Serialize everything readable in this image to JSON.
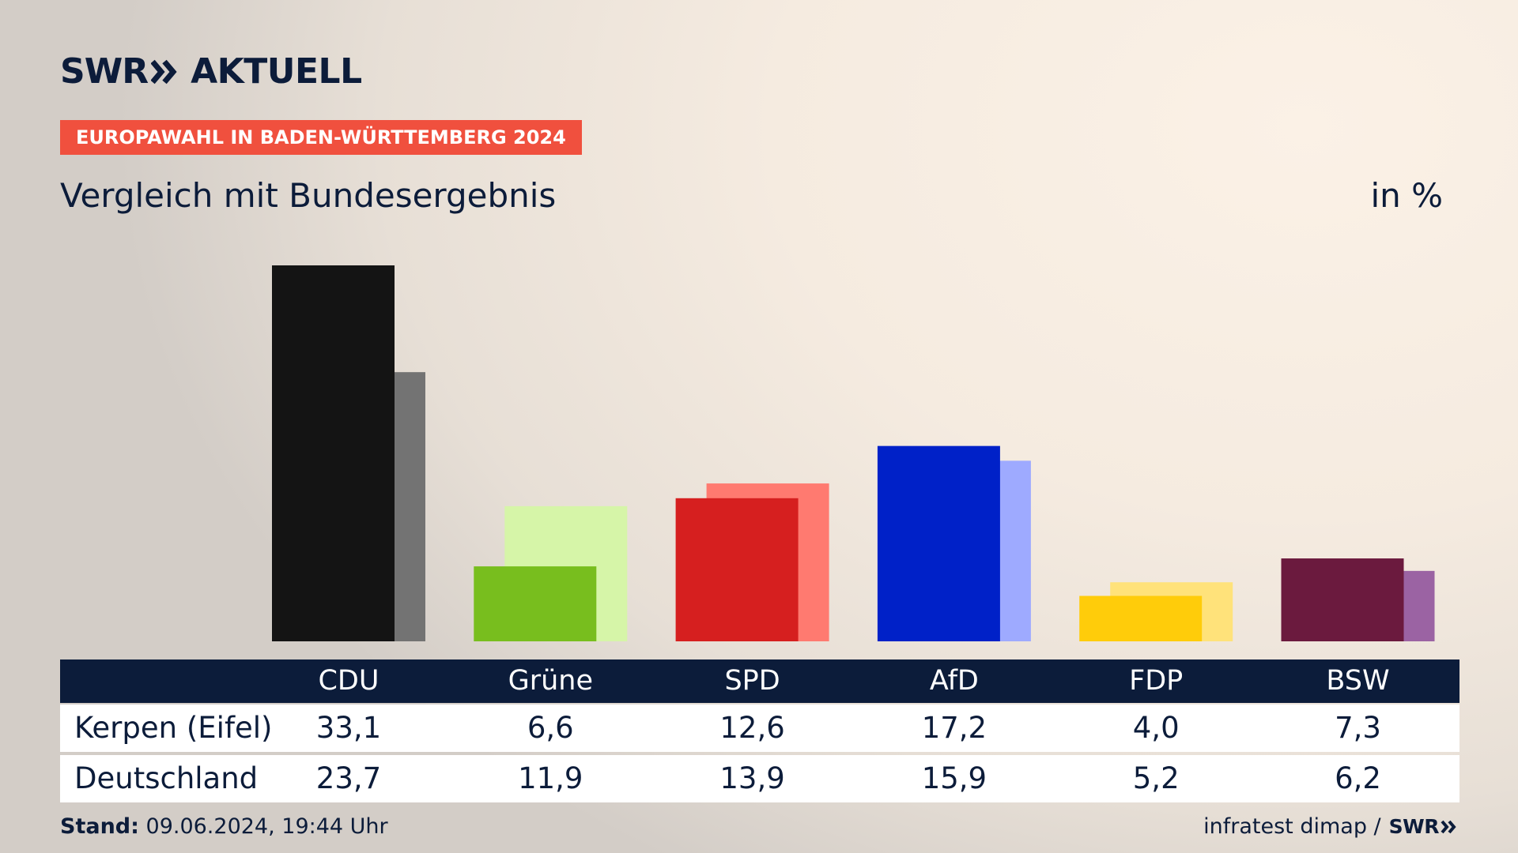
{
  "header": {
    "logo_left": "SWR",
    "logo_right": "AKTUELL",
    "kicker": "EUROPAWAHL IN BADEN-WÜRTTEMBERG 2024",
    "subtitle": "Vergleich mit Bundesergebnis",
    "unit": "in %"
  },
  "colors": {
    "kicker_bg": "#f0503e",
    "navy": "#0c1c3a"
  },
  "chart_data": {
    "type": "bar",
    "title": "Vergleich mit Bundesergebnis",
    "ylabel": "in %",
    "categories": [
      "CDU",
      "Grüne",
      "SPD",
      "AfD",
      "FDP",
      "BSW"
    ],
    "series": [
      {
        "name": "Kerpen (Eifel)",
        "values": [
          33.1,
          6.6,
          12.6,
          17.2,
          4.0,
          7.3
        ],
        "colors": [
          "#141414",
          "#78be1e",
          "#d61f1f",
          "#0021c8",
          "#ffcc0a",
          "#6b1a3e"
        ]
      },
      {
        "name": "Deutschland",
        "values": [
          23.7,
          11.9,
          13.9,
          15.9,
          5.2,
          6.2
        ],
        "colors": [
          "#737373",
          "#d6f5a8",
          "#ff7a70",
          "#9eaaff",
          "#ffe27a",
          "#9b63a3"
        ]
      }
    ],
    "ylim": [
      0,
      33.1
    ],
    "grid": false,
    "legend": "table-below"
  },
  "table": {
    "rows": [
      {
        "label": "Kerpen (Eifel)",
        "values": [
          "33,1",
          "6,6",
          "12,6",
          "17,2",
          "4,0",
          "7,3"
        ]
      },
      {
        "label": "Deutschland",
        "values": [
          "23,7",
          "11,9",
          "13,9",
          "15,9",
          "5,2",
          "6,2"
        ]
      }
    ]
  },
  "footer": {
    "stand_label": "Stand:",
    "stand_value": "09.06.2024, 19:44 Uhr",
    "source": "infratest dimap /",
    "source_logo": "SWR"
  }
}
